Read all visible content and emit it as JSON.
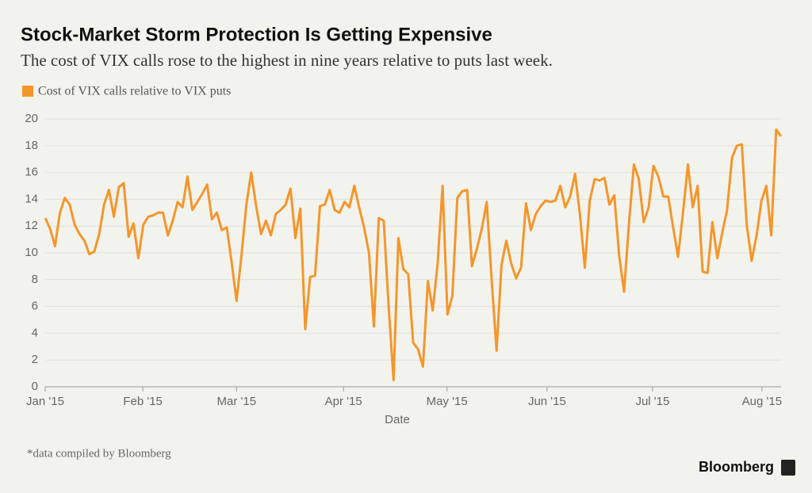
{
  "chart_data": {
    "type": "line",
    "title": "Stock-Market Storm Protection Is Getting Expensive",
    "subtitle": "The cost of VIX calls rose to the highest in nine years relative to puts last week.",
    "x_label": "Date",
    "footnote": "*data compiled by Bloomberg",
    "source": "Bloomberg",
    "series": [
      {
        "name": "Cost of VIX calls relative to VIX puts",
        "color": "#f5962a",
        "values": [
          12.6,
          11.8,
          10.5,
          13.0,
          14.1,
          13.6,
          12.1,
          11.4,
          10.9,
          9.9,
          10.1,
          11.4,
          13.6,
          14.7,
          12.7,
          14.9,
          15.2,
          11.2,
          12.2,
          9.6,
          12.1,
          12.7,
          12.8,
          13.0,
          13.0,
          11.3,
          12.4,
          13.8,
          13.4,
          15.7,
          13.2,
          13.8,
          14.4,
          15.1,
          12.5,
          13.0,
          11.7,
          11.9,
          9.3,
          6.4,
          9.8,
          13.6,
          16.0,
          13.5,
          11.4,
          12.4,
          11.3,
          12.9,
          13.2,
          13.6,
          14.8,
          11.1,
          13.3,
          4.3,
          8.2,
          8.3,
          13.5,
          13.6,
          14.7,
          13.2,
          13.0,
          13.8,
          13.4,
          15.0,
          13.4,
          11.9,
          10.0,
          4.5,
          12.6,
          12.4,
          6.0,
          0.5,
          11.1,
          8.8,
          8.4,
          3.3,
          2.8,
          1.5,
          7.9,
          5.7,
          9.2,
          15.0,
          5.4,
          6.8,
          14.1,
          14.6,
          14.7,
          9.0,
          10.3,
          11.8,
          13.8,
          8.0,
          2.7,
          9.1,
          10.9,
          9.2,
          8.1,
          8.9,
          13.7,
          11.7,
          12.9,
          13.5,
          13.9,
          13.8,
          13.9,
          15.0,
          13.4,
          14.2,
          15.9,
          12.9,
          8.9,
          13.9,
          15.5,
          15.4,
          15.6,
          13.6,
          14.3,
          9.8,
          7.1,
          12.2,
          16.6,
          15.5,
          12.3,
          13.4,
          16.5,
          15.7,
          14.2,
          14.2,
          11.9,
          9.7,
          13.0,
          16.6,
          13.4,
          15.0,
          8.6,
          8.5,
          12.3,
          9.6,
          11.5,
          13.2,
          17.1,
          18.0,
          18.1,
          12.1,
          9.4,
          11.3,
          13.9,
          15.0,
          11.3,
          19.2,
          18.7
        ]
      }
    ],
    "xlim": [
      0,
      150
    ],
    "xticks": [
      {
        "value": 0,
        "label": "Jan '15"
      },
      {
        "value": 19.9,
        "label": "Feb '15"
      },
      {
        "value": 39,
        "label": "Mar '15"
      },
      {
        "value": 60.8,
        "label": "Apr '15"
      },
      {
        "value": 81.9,
        "label": "May '15"
      },
      {
        "value": 102.3,
        "label": "Jun '15"
      },
      {
        "value": 123.8,
        "label": "Jul '15"
      },
      {
        "value": 146.1,
        "label": "Aug '15"
      }
    ],
    "ylim": [
      0,
      20
    ],
    "yticks": [
      0,
      2,
      4,
      6,
      8,
      10,
      12,
      14,
      16,
      18,
      20
    ],
    "grid": true
  }
}
